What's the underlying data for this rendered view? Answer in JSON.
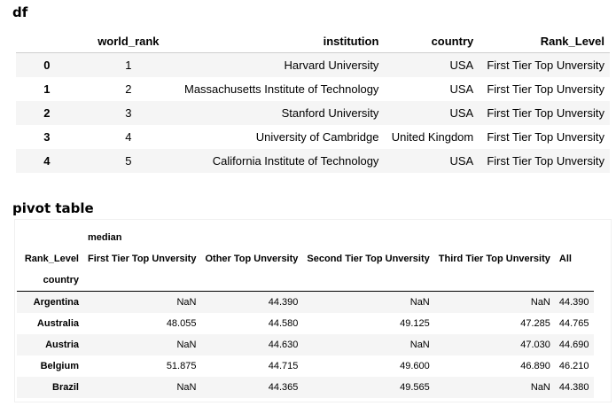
{
  "df": {
    "title": "df",
    "columns": [
      "",
      "world_rank",
      "institution",
      "country",
      "Rank_Level"
    ],
    "rows": [
      {
        "index": "0",
        "world_rank": "1",
        "institution": "Harvard University",
        "country": "USA",
        "rank_level": "First Tier Top Unversity"
      },
      {
        "index": "1",
        "world_rank": "2",
        "institution": "Massachusetts Institute of Technology",
        "country": "USA",
        "rank_level": "First Tier Top Unversity"
      },
      {
        "index": "2",
        "world_rank": "3",
        "institution": "Stanford University",
        "country": "USA",
        "rank_level": "First Tier Top Unversity"
      },
      {
        "index": "3",
        "world_rank": "4",
        "institution": "University of Cambridge",
        "country": "United Kingdom",
        "rank_level": "First Tier Top Unversity"
      },
      {
        "index": "4",
        "world_rank": "5",
        "institution": "California Institute of Technology",
        "country": "USA",
        "rank_level": "First Tier Top Unversity"
      }
    ]
  },
  "pivot": {
    "title": "pivot table",
    "top_header": "median",
    "column_name": "Rank_Level",
    "columns": [
      "First Tier Top Unversity",
      "Other Top Unversity",
      "Second Tier Top Unversity",
      "Third Tier Top Unversity",
      "All"
    ],
    "index_name": "country",
    "rows": [
      {
        "country": "Argentina",
        "values": [
          "NaN",
          "44.390",
          "NaN",
          "NaN",
          "44.390"
        ]
      },
      {
        "country": "Australia",
        "values": [
          "48.055",
          "44.580",
          "49.125",
          "47.285",
          "44.765"
        ]
      },
      {
        "country": "Austria",
        "values": [
          "NaN",
          "44.630",
          "NaN",
          "47.030",
          "44.690"
        ]
      },
      {
        "country": "Belgium",
        "values": [
          "51.875",
          "44.715",
          "49.600",
          "46.890",
          "46.210"
        ]
      },
      {
        "country": "Brazil",
        "values": [
          "NaN",
          "44.365",
          "49.565",
          "NaN",
          "44.380"
        ]
      }
    ]
  }
}
